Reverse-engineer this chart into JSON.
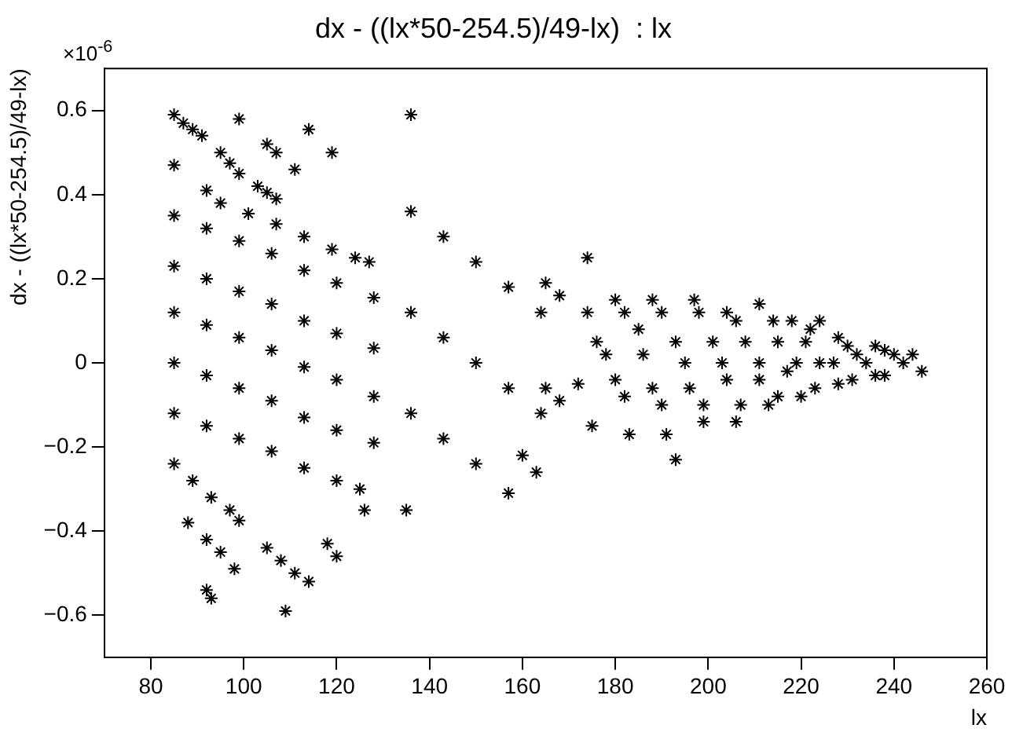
{
  "chart_data": {
    "type": "scatter",
    "title": "dx - ((lx*50-254.5)/49-lx)  : lx",
    "xlabel": "lx",
    "ylabel": "dx - ((lx*50-254.5)/49-lx)",
    "annotations": [
      "×10$^{-6}$"
    ],
    "color": "#000000",
    "marker": "cross",
    "xlim": [
      70,
      260
    ],
    "xticks": [
      80,
      100,
      120,
      140,
      160,
      180,
      200,
      220,
      240,
      260
    ],
    "ylim": [
      -0.7,
      0.7
    ],
    "yticks": [
      {
        "value": -0.6,
        "label": "−0.6"
      },
      {
        "value": -0.4,
        "label": "−0.4"
      },
      {
        "value": -0.2,
        "label": "−0.2"
      },
      0,
      0.2,
      0.4,
      0.6
    ],
    "x": [
      85,
      87,
      89,
      91,
      85,
      99,
      95,
      97,
      99,
      92,
      95,
      101,
      107,
      113,
      119,
      124,
      127,
      103,
      105,
      107,
      105,
      107,
      111,
      114,
      119,
      85,
      92,
      99,
      106,
      113,
      120,
      128,
      85,
      92,
      99,
      106,
      113,
      120,
      128,
      85,
      92,
      99,
      106,
      113,
      120,
      128,
      85,
      92,
      99,
      106,
      113,
      120,
      128,
      85,
      92,
      99,
      106,
      113,
      120,
      125,
      85,
      89,
      93,
      97,
      88,
      99,
      105,
      92,
      95,
      98,
      92,
      93,
      108,
      111,
      118,
      120,
      109,
      114,
      126,
      135,
      136,
      136,
      143,
      150,
      157,
      164,
      136,
      143,
      150,
      157,
      164,
      136,
      143,
      150,
      157,
      165,
      168,
      165,
      168,
      160,
      163,
      172,
      176,
      180,
      175,
      180,
      185,
      188,
      183,
      188,
      193,
      197,
      191,
      196,
      201,
      204,
      199,
      204,
      208,
      211,
      206,
      211,
      215,
      218,
      213,
      217,
      221,
      224,
      220,
      224,
      228,
      228,
      232,
      236,
      236,
      240,
      244,
      174,
      178,
      182,
      182,
      186,
      190,
      190,
      195,
      199,
      198,
      203,
      207,
      206,
      211,
      215,
      214,
      219,
      223,
      222,
      227,
      231,
      230,
      234,
      238,
      238,
      242,
      246,
      174,
      193
    ],
    "values": [
      0.59,
      0.57,
      0.555,
      0.54,
      0.47,
      0.58,
      0.5,
      0.475,
      0.45,
      0.41,
      0.38,
      0.355,
      0.33,
      0.3,
      0.27,
      0.25,
      0.24,
      0.42,
      0.405,
      0.39,
      0.52,
      0.5,
      0.46,
      0.555,
      0.5,
      0.35,
      0.32,
      0.29,
      0.26,
      0.22,
      0.19,
      0.155,
      0.23,
      0.2,
      0.17,
      0.14,
      0.1,
      0.07,
      0.035,
      0.12,
      0.09,
      0.06,
      0.03,
      -0.01,
      -0.04,
      -0.08,
      0,
      -0.03,
      -0.06,
      -0.09,
      -0.13,
      -0.16,
      -0.19,
      -0.12,
      -0.15,
      -0.18,
      -0.21,
      -0.25,
      -0.28,
      -0.3,
      -0.24,
      -0.28,
      -0.32,
      -0.35,
      -0.38,
      -0.375,
      -0.44,
      -0.42,
      -0.45,
      -0.49,
      -0.54,
      -0.56,
      -0.47,
      -0.5,
      -0.43,
      -0.46,
      -0.59,
      -0.52,
      -0.35,
      -0.35,
      0.59,
      0.36,
      0.3,
      0.24,
      0.18,
      0.12,
      0.12,
      0.06,
      0,
      -0.06,
      -0.12,
      -0.12,
      -0.18,
      -0.24,
      -0.31,
      0.19,
      0.16,
      -0.06,
      -0.09,
      -0.22,
      -0.26,
      -0.05,
      0.05,
      0.15,
      -0.15,
      -0.04,
      0.08,
      0.15,
      -0.17,
      -0.06,
      0.05,
      0.15,
      -0.17,
      -0.06,
      0.05,
      0.12,
      -0.14,
      -0.04,
      0.05,
      0.14,
      -0.14,
      -0.04,
      0.05,
      0.1,
      -0.1,
      -0.02,
      0.05,
      0.1,
      -0.08,
      0,
      0.06,
      -0.05,
      0.02,
      0.04,
      -0.03,
      0.02,
      0.02,
      0.12,
      0.02,
      -0.08,
      0.12,
      0.02,
      -0.1,
      0.12,
      0,
      -0.1,
      0.12,
      0,
      -0.1,
      0.1,
      0,
      -0.08,
      0.1,
      0,
      -0.06,
      0.08,
      0,
      -0.04,
      0.04,
      0,
      -0.03,
      0.03,
      0,
      -0.02,
      0.25,
      -0.23
    ]
  }
}
